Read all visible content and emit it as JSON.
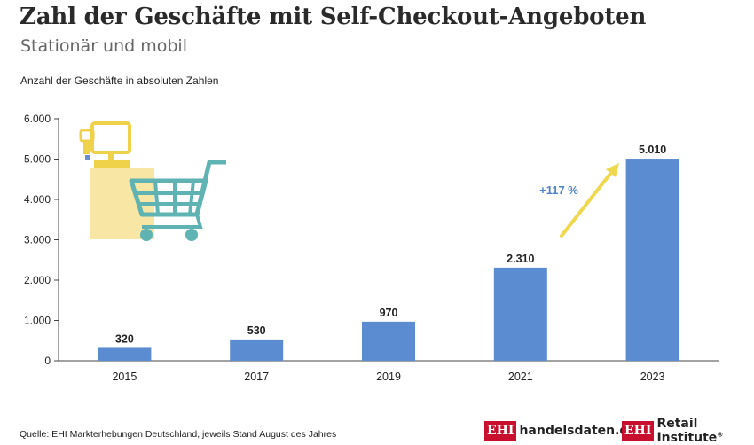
{
  "header": {
    "title": "Zahl der Geschäfte mit Self-Checkout-Angeboten",
    "subtitle": "Stationär und mobil",
    "axis_caption": "Anzahl der Geschäfte in absoluten Zahlen"
  },
  "chart_data": {
    "type": "bar",
    "categories": [
      "2015",
      "2017",
      "2019",
      "2021",
      "2023"
    ],
    "values": [
      320,
      530,
      970,
      2310,
      5010
    ],
    "value_labels": [
      "320",
      "530",
      "970",
      "2.310",
      "5.010"
    ],
    "ylim": [
      0,
      6000
    ],
    "yticks": [
      0,
      1000,
      2000,
      3000,
      4000,
      5000,
      6000
    ],
    "ytick_labels": [
      "0",
      "1.000",
      "2.000",
      "3.000",
      "4.000",
      "5.000",
      "6.000"
    ],
    "ylabel": "Anzahl der Geschäfte in absoluten Zahlen",
    "grid": false,
    "bar_color": "#5b8bd0",
    "annotation": {
      "text": "+117 %",
      "color": "#4f83c7",
      "arrow_color": "#f0d84e"
    }
  },
  "footer": {
    "source": "Quelle: EHI Markterhebungen Deutschland, jeweils Stand August des Jahres",
    "logo1_badge": "EHI",
    "logo1_text": "handelsdaten.de",
    "logo2_badge": "EHI",
    "logo2_text": "Retail Institute",
    "logo2_mark": "®"
  },
  "illustration": {
    "icon": "self-checkout-cart-icon",
    "screen_color": "#f0d24a",
    "cart_color": "#5fb3b3"
  }
}
